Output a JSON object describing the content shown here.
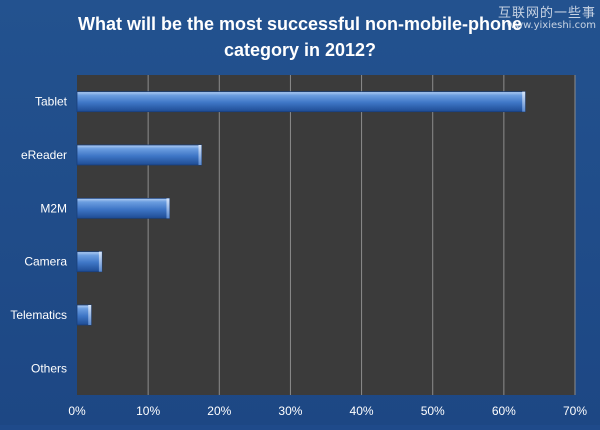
{
  "watermark": {
    "line1": "互联网的一些事",
    "line2": "www.yixieshi.com"
  },
  "chart_data": {
    "type": "bar",
    "orientation": "horizontal",
    "title": "What will be the most successful non-mobile-phone category in 2012?",
    "title_lines": [
      "What will be the most successful non-mobile-phone",
      "category in 2012?"
    ],
    "categories": [
      "Tablet",
      "eReader",
      "M2M",
      "Camera",
      "Telematics",
      "Others"
    ],
    "values": [
      63,
      17.5,
      13,
      3.5,
      2,
      0
    ],
    "unit": "%",
    "xlim": [
      0,
      70
    ],
    "xticks": [
      0,
      10,
      20,
      30,
      40,
      50,
      60,
      70
    ],
    "xtick_labels": [
      "0%",
      "10%",
      "20%",
      "30%",
      "40%",
      "50%",
      "60%",
      "70%"
    ],
    "grid": "vertical",
    "legend": "none",
    "colors": {
      "background": "#1f4a8a",
      "plot_area": "#3b3b3b",
      "bar": "#3f78c8",
      "gridline": "#8c8c8c",
      "text": "#ffffff"
    }
  }
}
